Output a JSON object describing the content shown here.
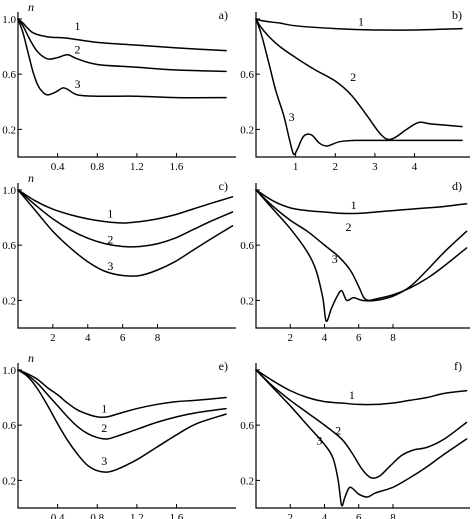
{
  "chart_data": [
    {
      "type": "line",
      "panel_label": "a)",
      "ylabel": "n",
      "xlim": [
        0,
        2.2
      ],
      "ylim": [
        0,
        1.05
      ],
      "xticks": [
        0.4,
        0.8,
        1.2,
        1.6
      ],
      "xtick_labels": [
        "0.4",
        "0.8",
        "1.2",
        "1.6"
      ],
      "yticks": [
        1.0,
        0.6,
        0.2
      ],
      "ytick_labels": [
        "1.0",
        "0.6",
        "0.2"
      ],
      "series": [
        {
          "name": "1",
          "x": [
            0,
            0.05,
            0.15,
            0.3,
            0.5,
            0.8,
            1.2,
            1.6,
            2.1
          ],
          "y": [
            1.0,
            0.97,
            0.9,
            0.87,
            0.86,
            0.83,
            0.81,
            0.79,
            0.77
          ]
        },
        {
          "name": "2",
          "x": [
            0,
            0.05,
            0.12,
            0.2,
            0.3,
            0.4,
            0.5,
            0.6,
            0.8,
            1.2,
            1.6,
            2.1
          ],
          "y": [
            1.0,
            0.95,
            0.85,
            0.76,
            0.71,
            0.72,
            0.74,
            0.71,
            0.67,
            0.65,
            0.63,
            0.62
          ]
        },
        {
          "name": "3",
          "x": [
            0,
            0.05,
            0.1,
            0.15,
            0.2,
            0.25,
            0.3,
            0.38,
            0.45,
            0.5,
            0.6,
            0.8,
            1.2,
            1.6,
            2.1
          ],
          "y": [
            1.0,
            0.9,
            0.76,
            0.62,
            0.52,
            0.47,
            0.45,
            0.47,
            0.5,
            0.49,
            0.45,
            0.44,
            0.44,
            0.43,
            0.43
          ]
        }
      ],
      "curve_labels": [
        {
          "text": "1",
          "x": 0.6,
          "y": 0.95
        },
        {
          "text": "2",
          "x": 0.6,
          "y": 0.78
        },
        {
          "text": "3",
          "x": 0.6,
          "y": 0.53
        }
      ]
    },
    {
      "type": "line",
      "panel_label": "b)",
      "ylabel": "",
      "xlim": [
        0,
        5.4
      ],
      "ylim": [
        0,
        1.05
      ],
      "xticks": [
        1,
        2,
        3,
        4
      ],
      "xtick_labels": [
        "1",
        "2",
        "3",
        "4"
      ],
      "yticks": [
        1.0,
        0.6,
        0.2
      ],
      "ytick_labels": [
        "",
        "0.6",
        "0.2"
      ],
      "series": [
        {
          "name": "1",
          "x": [
            0,
            0.1,
            0.3,
            0.6,
            1,
            2,
            3,
            4,
            5.2
          ],
          "y": [
            1.0,
            0.99,
            0.98,
            0.97,
            0.95,
            0.93,
            0.92,
            0.92,
            0.93
          ]
        },
        {
          "name": "2",
          "x": [
            0,
            0.1,
            0.3,
            0.6,
            1,
            1.5,
            2,
            2.4,
            2.8,
            3.1,
            3.3,
            3.5,
            3.8,
            4.1,
            4.4,
            4.8,
            5.2
          ],
          "y": [
            1.0,
            0.95,
            0.88,
            0.8,
            0.72,
            0.63,
            0.55,
            0.45,
            0.3,
            0.18,
            0.13,
            0.14,
            0.2,
            0.25,
            0.24,
            0.23,
            0.22
          ]
        },
        {
          "name": "3",
          "x": [
            0,
            0.1,
            0.2,
            0.35,
            0.5,
            0.7,
            0.85,
            0.95,
            1.05,
            1.2,
            1.4,
            1.6,
            1.8,
            2.1,
            2.5,
            3,
            3.6,
            4.2,
            5.2
          ],
          "y": [
            1.0,
            0.92,
            0.82,
            0.65,
            0.48,
            0.3,
            0.12,
            0.02,
            0.06,
            0.15,
            0.16,
            0.1,
            0.08,
            0.11,
            0.12,
            0.12,
            0.12,
            0.12,
            0.12
          ]
        }
      ],
      "curve_labels": [
        {
          "text": "1",
          "x": 2.65,
          "y": 0.98
        },
        {
          "text": "2",
          "x": 2.45,
          "y": 0.58
        },
        {
          "text": "3",
          "x": 0.9,
          "y": 0.29
        }
      ]
    },
    {
      "type": "line",
      "panel_label": "c)",
      "ylabel": "n",
      "xlim": [
        0,
        12.5
      ],
      "ylim": [
        0,
        1.05
      ],
      "xticks": [
        2,
        4,
        6,
        8
      ],
      "xtick_labels": [
        "2",
        "4",
        "6",
        "8"
      ],
      "yticks": [
        1.0,
        0.6,
        0.2
      ],
      "ytick_labels": [
        "1.0",
        "0.6",
        "0.2"
      ],
      "series": [
        {
          "name": "1",
          "x": [
            0,
            1,
            2,
            3,
            4,
            5,
            6,
            7,
            8,
            9,
            10,
            11,
            12.3
          ],
          "y": [
            1.0,
            0.92,
            0.86,
            0.82,
            0.79,
            0.77,
            0.76,
            0.77,
            0.79,
            0.82,
            0.86,
            0.9,
            0.95
          ]
        },
        {
          "name": "2",
          "x": [
            0,
            1,
            2,
            3,
            4,
            5,
            6,
            7,
            8,
            9,
            10,
            11,
            12.3
          ],
          "y": [
            1.0,
            0.89,
            0.79,
            0.71,
            0.65,
            0.61,
            0.59,
            0.59,
            0.61,
            0.65,
            0.71,
            0.77,
            0.84
          ]
        },
        {
          "name": "3",
          "x": [
            0,
            1,
            2,
            3,
            4,
            5,
            6,
            7,
            8,
            9,
            10,
            11,
            12.3
          ],
          "y": [
            1.0,
            0.85,
            0.7,
            0.58,
            0.48,
            0.41,
            0.38,
            0.38,
            0.42,
            0.48,
            0.56,
            0.64,
            0.74
          ]
        }
      ],
      "curve_labels": [
        {
          "text": "1",
          "x": 5.3,
          "y": 0.83
        },
        {
          "text": "2",
          "x": 5.3,
          "y": 0.64
        },
        {
          "text": "3",
          "x": 5.3,
          "y": 0.45
        }
      ]
    },
    {
      "type": "line",
      "panel_label": "d)",
      "ylabel": "",
      "xlim": [
        0,
        12.5
      ],
      "ylim": [
        0,
        1.05
      ],
      "xticks": [
        2,
        4,
        6,
        8
      ],
      "xtick_labels": [
        "2",
        "4",
        "6",
        "8"
      ],
      "yticks": [
        1.0,
        0.6,
        0.2
      ],
      "ytick_labels": [
        "",
        "0.6",
        "0.2"
      ],
      "series": [
        {
          "name": "1",
          "x": [
            0,
            1,
            2,
            3,
            4,
            5,
            6,
            7,
            8,
            9,
            10,
            11,
            12.3
          ],
          "y": [
            1.0,
            0.92,
            0.87,
            0.85,
            0.84,
            0.83,
            0.83,
            0.84,
            0.85,
            0.86,
            0.87,
            0.88,
            0.9
          ]
        },
        {
          "name": "2",
          "x": [
            0,
            1,
            2,
            3,
            4,
            4.8,
            5.5,
            6.0,
            6.3,
            6.6,
            7,
            8,
            9,
            10,
            11,
            12.3
          ],
          "y": [
            1.0,
            0.88,
            0.78,
            0.7,
            0.6,
            0.52,
            0.42,
            0.3,
            0.22,
            0.2,
            0.21,
            0.24,
            0.29,
            0.36,
            0.45,
            0.58
          ]
        },
        {
          "name": "3",
          "x": [
            0,
            1,
            2,
            3,
            3.5,
            3.9,
            4.1,
            4.4,
            4.7,
            5.0,
            5.3,
            5.7,
            6.2,
            7,
            8,
            9,
            10,
            11,
            12.3
          ],
          "y": [
            1.0,
            0.86,
            0.72,
            0.55,
            0.42,
            0.22,
            0.05,
            0.14,
            0.22,
            0.27,
            0.2,
            0.22,
            0.2,
            0.2,
            0.23,
            0.3,
            0.42,
            0.55,
            0.7
          ]
        }
      ],
      "curve_labels": [
        {
          "text": "1",
          "x": 5.7,
          "y": 0.89
        },
        {
          "text": "2",
          "x": 5.4,
          "y": 0.73
        },
        {
          "text": "3",
          "x": 4.6,
          "y": 0.5
        }
      ]
    },
    {
      "type": "line",
      "panel_label": "e)",
      "ylabel": "n",
      "xlim": [
        0,
        2.2
      ],
      "ylim": [
        0,
        1.05
      ],
      "xticks": [
        0.4,
        0.8,
        1.2,
        1.6
      ],
      "xtick_labels": [
        "0.4",
        "0.8",
        "1.2",
        "1.6"
      ],
      "yticks": [
        1.0,
        0.6,
        0.2
      ],
      "ytick_labels": [
        "1.0",
        "0.6",
        "0.2"
      ],
      "series": [
        {
          "name": "1",
          "x": [
            0,
            0.1,
            0.2,
            0.3,
            0.4,
            0.5,
            0.6,
            0.7,
            0.8,
            0.9,
            1.0,
            1.2,
            1.4,
            1.6,
            1.8,
            2.1
          ],
          "y": [
            1.0,
            0.97,
            0.93,
            0.87,
            0.82,
            0.76,
            0.71,
            0.68,
            0.66,
            0.66,
            0.68,
            0.72,
            0.75,
            0.77,
            0.78,
            0.8
          ]
        },
        {
          "name": "2",
          "x": [
            0,
            0.1,
            0.2,
            0.3,
            0.4,
            0.5,
            0.6,
            0.7,
            0.8,
            0.9,
            1.0,
            1.2,
            1.4,
            1.6,
            1.8,
            2.1
          ],
          "y": [
            1.0,
            0.96,
            0.9,
            0.82,
            0.74,
            0.66,
            0.59,
            0.54,
            0.51,
            0.5,
            0.52,
            0.57,
            0.62,
            0.66,
            0.69,
            0.72
          ]
        },
        {
          "name": "3",
          "x": [
            0,
            0.1,
            0.2,
            0.3,
            0.4,
            0.5,
            0.6,
            0.7,
            0.8,
            0.9,
            1.0,
            1.2,
            1.4,
            1.6,
            1.8,
            2.1
          ],
          "y": [
            1.0,
            0.95,
            0.86,
            0.74,
            0.61,
            0.49,
            0.39,
            0.31,
            0.27,
            0.26,
            0.28,
            0.35,
            0.44,
            0.53,
            0.61,
            0.68
          ]
        }
      ],
      "curve_labels": [
        {
          "text": "1",
          "x": 0.87,
          "y": 0.72
        },
        {
          "text": "2",
          "x": 0.87,
          "y": 0.58
        },
        {
          "text": "3",
          "x": 0.87,
          "y": 0.34
        }
      ]
    },
    {
      "type": "line",
      "panel_label": "f)",
      "ylabel": "",
      "xlim": [
        0,
        12.5
      ],
      "ylim": [
        0,
        1.05
      ],
      "xticks": [
        2,
        4,
        6,
        8
      ],
      "xtick_labels": [
        "2",
        "4",
        "6",
        "8"
      ],
      "yticks": [
        1.0,
        0.6,
        0.2
      ],
      "ytick_labels": [
        "",
        "0.6",
        "0.2"
      ],
      "series": [
        {
          "name": "1",
          "x": [
            0,
            1,
            2,
            3,
            4,
            5,
            6,
            7,
            8,
            9,
            10,
            11,
            12.3
          ],
          "y": [
            1.0,
            0.92,
            0.85,
            0.8,
            0.77,
            0.76,
            0.75,
            0.75,
            0.76,
            0.78,
            0.8,
            0.83,
            0.85
          ]
        },
        {
          "name": "2",
          "x": [
            0,
            1,
            2,
            3,
            4,
            5,
            5.6,
            6.2,
            6.7,
            7.2,
            7.8,
            8.5,
            9.2,
            10,
            11,
            12.3
          ],
          "y": [
            1.0,
            0.88,
            0.78,
            0.69,
            0.6,
            0.5,
            0.4,
            0.28,
            0.22,
            0.23,
            0.3,
            0.38,
            0.42,
            0.44,
            0.5,
            0.62
          ]
        },
        {
          "name": "3",
          "x": [
            0,
            1,
            2,
            3,
            4,
            4.5,
            4.8,
            5.0,
            5.2,
            5.5,
            6.0,
            6.5,
            7,
            8,
            9,
            10,
            11,
            12.3
          ],
          "y": [
            1.0,
            0.87,
            0.74,
            0.6,
            0.46,
            0.36,
            0.2,
            0.02,
            0.08,
            0.15,
            0.1,
            0.08,
            0.11,
            0.15,
            0.22,
            0.3,
            0.39,
            0.5
          ]
        }
      ],
      "curve_labels": [
        {
          "text": "1",
          "x": 5.6,
          "y": 0.82
        },
        {
          "text": "2",
          "x": 4.8,
          "y": 0.56
        },
        {
          "text": "3",
          "x": 3.7,
          "y": 0.49
        }
      ]
    }
  ]
}
